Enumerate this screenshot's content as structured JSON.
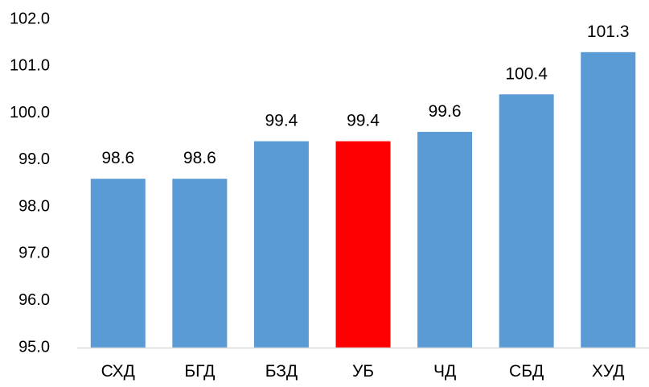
{
  "chart_data": {
    "type": "bar",
    "title": "",
    "xlabel": "",
    "ylabel": "",
    "ylim": [
      95.0,
      102.0
    ],
    "y_ticks": [
      "95.0",
      "96.0",
      "97.0",
      "98.0",
      "99.0",
      "100.0",
      "101.0",
      "102.0"
    ],
    "grid": false,
    "legend": "none",
    "categories": [
      "СХД",
      "БГД",
      "БЗД",
      "УБ",
      "ЧД",
      "СБД",
      "ХУД"
    ],
    "values": [
      98.6,
      98.6,
      99.4,
      99.4,
      99.6,
      100.4,
      101.3
    ],
    "data_labels": [
      "98.6",
      "98.6",
      "99.4",
      "99.4",
      "99.6",
      "100.4",
      "101.3"
    ],
    "bar_colors": [
      "#5b9bd5",
      "#5b9bd5",
      "#5b9bd5",
      "#ff0000",
      "#5b9bd5",
      "#5b9bd5",
      "#5b9bd5"
    ],
    "axis_color": "#d9d9d9"
  }
}
